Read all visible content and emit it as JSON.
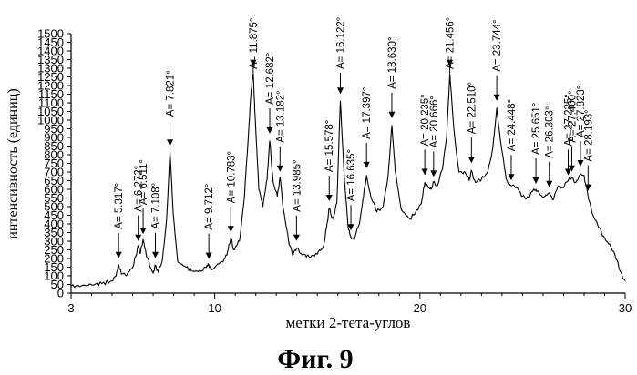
{
  "chart_data": {
    "type": "line",
    "xlabel": "метки 2-тета-углов",
    "ylabel": "интенсивность (единиц)",
    "caption": "Фиг. 9",
    "xlim": [
      3,
      30
    ],
    "ylim": [
      0,
      1500
    ],
    "x_ticks": [
      3,
      10,
      20,
      30
    ],
    "y_ticks": [
      0,
      50,
      100,
      150,
      200,
      250,
      300,
      350,
      400,
      450,
      500,
      550,
      600,
      650,
      700,
      750,
      800,
      850,
      900,
      950,
      1000,
      1050,
      1100,
      1150,
      1200,
      1250,
      1300,
      1350,
      1400,
      1450,
      1500
    ],
    "grid": false,
    "peaks": [
      {
        "label": "A= 5.317°",
        "x": 5.317,
        "y": 170
      },
      {
        "label": "A= 6.272°",
        "x": 6.272,
        "y": 270
      },
      {
        "label": "A= 6.511°",
        "x": 6.511,
        "y": 310
      },
      {
        "label": "A= 7.108°",
        "x": 7.108,
        "y": 170
      },
      {
        "label": "A= 7.821°",
        "x": 7.821,
        "y": 820
      },
      {
        "label": "A= 9.712°",
        "x": 9.712,
        "y": 165
      },
      {
        "label": "A= 10.783°",
        "x": 10.783,
        "y": 320
      },
      {
        "label": "A= 11.875°",
        "x": 11.875,
        "y": 1280
      },
      {
        "label": "A= 12.682°",
        "x": 12.682,
        "y": 890
      },
      {
        "label": "A= 13.182°",
        "x": 13.182,
        "y": 670
      },
      {
        "label": "A= 13.985°",
        "x": 13.985,
        "y": 270
      },
      {
        "label": "A= 15.578°",
        "x": 15.578,
        "y": 500
      },
      {
        "label": "A= 16.122°",
        "x": 16.122,
        "y": 1120
      },
      {
        "label": "A= 16.635°",
        "x": 16.635,
        "y": 330
      },
      {
        "label": "A= 17.397°",
        "x": 17.397,
        "y": 690
      },
      {
        "label": "A= 18.630°",
        "x": 18.63,
        "y": 980
      },
      {
        "label": "A= 20.235°",
        "x": 20.235,
        "y": 650
      },
      {
        "label": "A= 20.666°",
        "x": 20.666,
        "y": 640
      },
      {
        "label": "A= 21.456°",
        "x": 21.456,
        "y": 1280
      },
      {
        "label": "A= 22.510°",
        "x": 22.51,
        "y": 720
      },
      {
        "label": "A= 23.744°",
        "x": 23.744,
        "y": 1080
      },
      {
        "label": "A= 24.448°",
        "x": 24.448,
        "y": 620
      },
      {
        "label": "A= 25.651°",
        "x": 25.651,
        "y": 600
      },
      {
        "label": "A= 26.303°",
        "x": 26.303,
        "y": 580
      },
      {
        "label": "A= 27.225°",
        "x": 27.225,
        "y": 650
      },
      {
        "label": "A= 27.400°",
        "x": 27.4,
        "y": 670
      },
      {
        "label": "A= 27.823°",
        "x": 27.823,
        "y": 700
      },
      {
        "label": "A= 28.193°",
        "x": 28.193,
        "y": 560
      }
    ],
    "series": [
      {
        "x": [
          3.0,
          3.5,
          4.0,
          4.5,
          5.0,
          5.2,
          5.317,
          5.45,
          5.7,
          6.0,
          6.15,
          6.272,
          6.38,
          6.511,
          6.65,
          6.85,
          7.0,
          7.108,
          7.25,
          7.45,
          7.65,
          7.821,
          7.98,
          8.2,
          8.6,
          9.0,
          9.4,
          9.6,
          9.712,
          9.85,
          10.2,
          10.5,
          10.65,
          10.783,
          10.92,
          11.2,
          11.45,
          11.65,
          11.78,
          11.875,
          11.97,
          12.15,
          12.35,
          12.55,
          12.682,
          12.85,
          13.05,
          13.182,
          13.35,
          13.6,
          13.8,
          13.985,
          14.2,
          14.6,
          15.0,
          15.3,
          15.45,
          15.578,
          15.75,
          15.95,
          16.122,
          16.3,
          16.5,
          16.635,
          16.8,
          17.05,
          17.25,
          17.397,
          17.6,
          17.9,
          18.2,
          18.45,
          18.63,
          18.8,
          19.1,
          19.5,
          19.9,
          20.1,
          20.235,
          20.4,
          20.55,
          20.666,
          20.85,
          21.1,
          21.3,
          21.456,
          21.65,
          21.9,
          22.2,
          22.4,
          22.51,
          22.7,
          23.0,
          23.3,
          23.55,
          23.744,
          23.95,
          24.2,
          24.448,
          24.7,
          25.0,
          25.3,
          25.5,
          25.651,
          25.85,
          26.1,
          26.303,
          26.5,
          26.75,
          27.0,
          27.225,
          27.4,
          27.6,
          27.823,
          28.0,
          28.193,
          28.4,
          28.7,
          29.0,
          29.3,
          29.6,
          29.8,
          30.0
        ],
        "y": [
          40,
          42,
          48,
          55,
          70,
          100,
          165,
          110,
          100,
          150,
          210,
          275,
          230,
          310,
          230,
          150,
          115,
          160,
          120,
          190,
          420,
          815,
          460,
          180,
          150,
          125,
          130,
          150,
          165,
          135,
          170,
          200,
          250,
          320,
          250,
          300,
          560,
          930,
          1180,
          1270,
          1020,
          600,
          500,
          660,
          880,
          640,
          560,
          670,
          480,
          300,
          215,
          260,
          230,
          210,
          225,
          270,
          380,
          490,
          430,
          520,
          1110,
          700,
          380,
          320,
          310,
          400,
          560,
          680,
          560,
          470,
          500,
          680,
          970,
          700,
          480,
          430,
          480,
          540,
          640,
          610,
          600,
          640,
          620,
          720,
          900,
          1270,
          950,
          700,
          700,
          650,
          710,
          640,
          660,
          700,
          840,
          1070,
          860,
          660,
          620,
          610,
          560,
          550,
          590,
          600,
          570,
          560,
          580,
          540,
          620,
          610,
          650,
          670,
          640,
          690,
          680,
          560,
          460,
          380,
          320,
          270,
          190,
          120,
          70
        ]
      }
    ]
  }
}
